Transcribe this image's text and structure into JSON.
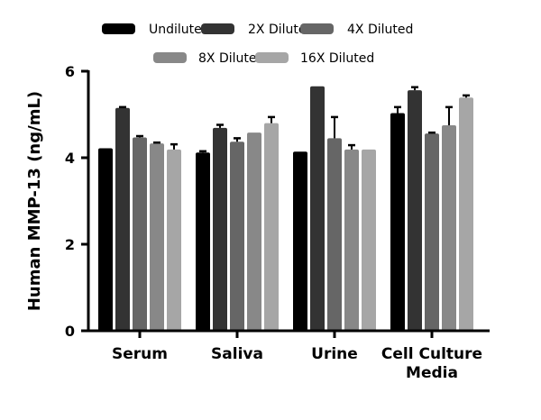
{
  "chart_data": {
    "type": "bar",
    "title": "",
    "xlabel": "",
    "ylabel": "Human MMP-13 (ng/mL)",
    "ylim": [
      0,
      6
    ],
    "yticks": [
      "0",
      "2",
      "4",
      "6"
    ],
    "grid": false,
    "legend_position": "top",
    "categories": [
      "Serum",
      "Saliva",
      "Urine",
      [
        "Cell Culture",
        "Media"
      ]
    ],
    "series": [
      {
        "name": "Undiluted",
        "color": "#000000",
        "values": [
          4.22,
          4.12,
          4.14,
          5.03
        ],
        "errors": [
          0,
          0.03,
          0,
          0.14
        ]
      },
      {
        "name": "2X Diluted",
        "color": "#333333",
        "values": [
          5.15,
          4.69,
          5.65,
          5.56
        ],
        "errors": [
          0.02,
          0.07,
          0,
          0.07
        ]
      },
      {
        "name": "4X Diluted",
        "color": "#666666",
        "values": [
          4.47,
          4.37,
          4.45,
          4.56
        ],
        "errors": [
          0.03,
          0.08,
          0.49,
          0.02
        ]
      },
      {
        "name": "8X Diluted",
        "color": "#888888",
        "values": [
          4.33,
          4.58,
          4.19,
          4.75
        ],
        "errors": [
          0.02,
          0,
          0.1,
          0.42
        ]
      },
      {
        "name": "16X Diluted",
        "color": "#a6a6a6",
        "values": [
          4.19,
          4.8,
          4.19,
          5.39
        ],
        "errors": [
          0.12,
          0.14,
          0,
          0.05
        ]
      }
    ]
  }
}
